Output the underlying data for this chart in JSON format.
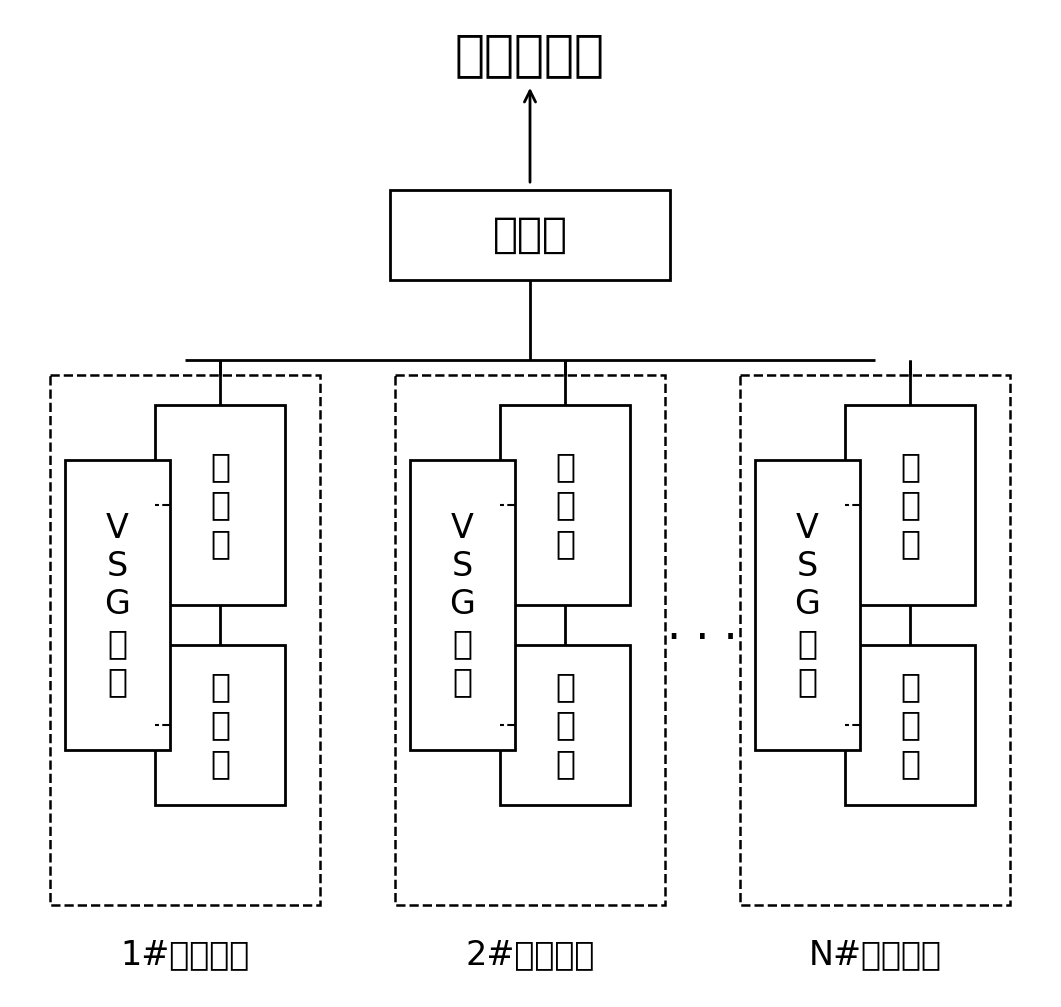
{
  "title": "接交流母线",
  "transformer_label": "变压器",
  "converter_label": "变\n流\n器",
  "battery_label": "电\n池\n组",
  "vsg_label": "V\nS\nG\n控\n制",
  "unit_labels": [
    "1#储能单元",
    "2#储能单元",
    "N#储能单元"
  ],
  "dots": "· · ·",
  "bg_color": "#ffffff",
  "box_color": "#000000",
  "line_color": "#000000",
  "font_size_title": 36,
  "font_size_transformer": 30,
  "font_size_box": 24,
  "font_size_label": 24,
  "font_size_dots": 32
}
